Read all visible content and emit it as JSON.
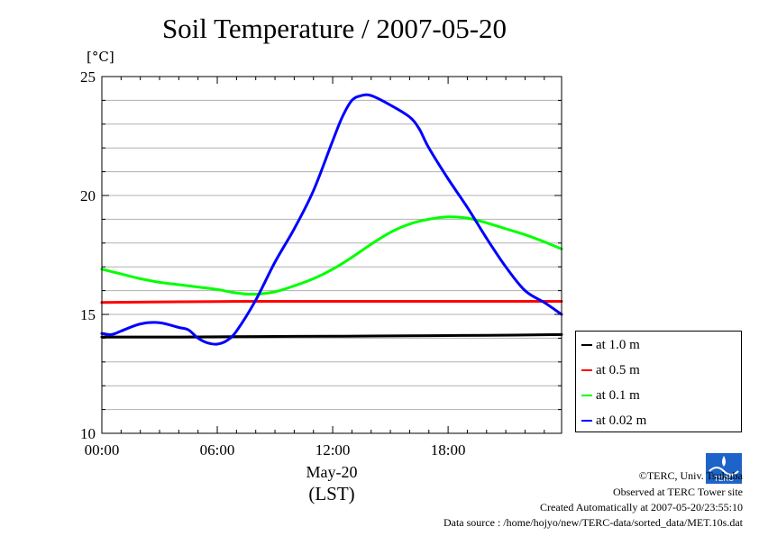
{
  "chart_data": {
    "type": "line",
    "title": "Soil Temperature / 2007-05-20",
    "ylabel": "[°C]",
    "xlabel_date": "May-20",
    "xlabel_zone": "(LST)",
    "xlim": [
      0,
      23.9
    ],
    "ylim": [
      10,
      25
    ],
    "x_ticks": [
      0,
      6,
      12,
      18
    ],
    "x_tick_labels": [
      "00:00",
      "06:00",
      "12:00",
      "18:00"
    ],
    "y_ticks": [
      10,
      15,
      20,
      25
    ],
    "y_tick_labels": [
      "10",
      "15",
      "20",
      "25"
    ],
    "grid": true,
    "legend_position": "bottom-right outside",
    "series": [
      {
        "name": "at 1.0 m",
        "color": "#000000",
        "x": [
          0,
          4,
          8,
          12,
          16,
          20,
          23.9
        ],
        "values": [
          14.05,
          14.05,
          14.07,
          14.08,
          14.1,
          14.12,
          14.15
        ]
      },
      {
        "name": "at 0.5 m",
        "color": "#ff0000",
        "x": [
          0,
          4,
          8,
          12,
          16,
          20,
          23.9
        ],
        "values": [
          15.5,
          15.53,
          15.55,
          15.55,
          15.55,
          15.55,
          15.55
        ]
      },
      {
        "name": "at 0.1 m",
        "color": "#00ff00",
        "x": [
          0,
          1,
          2,
          3,
          4,
          5,
          6,
          7,
          8,
          9,
          10,
          11,
          12,
          13,
          14,
          15,
          16,
          17,
          18,
          19,
          20,
          21,
          22,
          23,
          23.9
        ],
        "values": [
          16.9,
          16.7,
          16.5,
          16.35,
          16.25,
          16.15,
          16.05,
          15.9,
          15.85,
          15.95,
          16.2,
          16.5,
          16.9,
          17.4,
          17.95,
          18.45,
          18.8,
          19.0,
          19.1,
          19.05,
          18.85,
          18.6,
          18.35,
          18.05,
          17.75
        ]
      },
      {
        "name": "at 0.02 m",
        "color": "#0000ff",
        "x": [
          0,
          0.5,
          1,
          2,
          3,
          4,
          4.5,
          5,
          5.5,
          6,
          6.5,
          7,
          8,
          9,
          10,
          11,
          12,
          12.5,
          13,
          13.5,
          14,
          15,
          16,
          16.5,
          17,
          18,
          19,
          20,
          21,
          22,
          23,
          23.9
        ],
        "values": [
          14.2,
          14.15,
          14.3,
          14.6,
          14.65,
          14.45,
          14.35,
          14.0,
          13.8,
          13.75,
          13.9,
          14.3,
          15.6,
          17.2,
          18.6,
          20.2,
          22.3,
          23.3,
          24.0,
          24.2,
          24.2,
          23.8,
          23.3,
          22.8,
          22.0,
          20.7,
          19.5,
          18.2,
          17.0,
          16.0,
          15.5,
          15.0
        ]
      }
    ]
  },
  "footer": {
    "credit": "©TERC, Univ. Tsukuba",
    "site": "Observed at TERC Tower site",
    "created": "Created Automatically at 2007-05-20/23:55:10",
    "source": "Data source : /home/hojyo/new/TERC-data/sorted_data/MET.10s.dat"
  },
  "logo": {
    "icon": "terc-logo-icon",
    "text": "TERC",
    "color": "#1e64c8"
  }
}
